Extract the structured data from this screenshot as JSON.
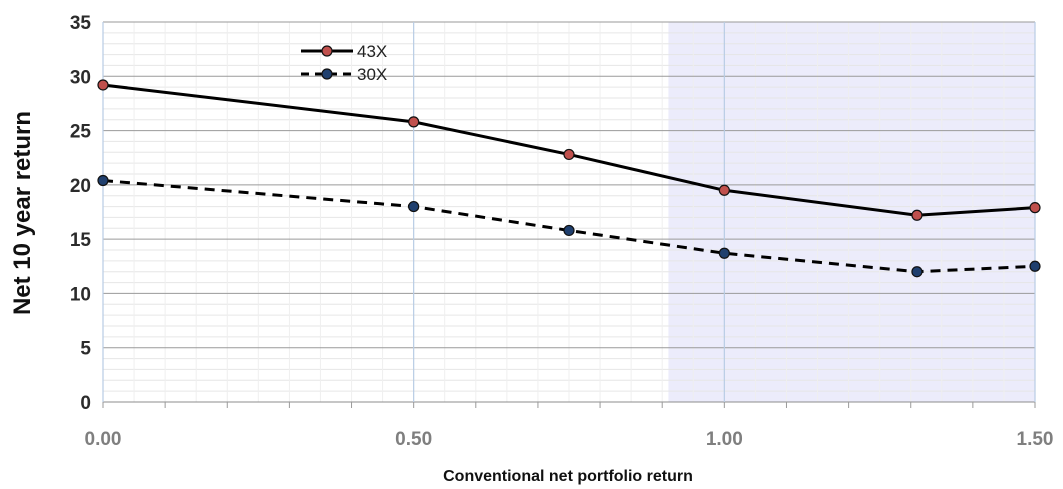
{
  "chart_data": {
    "type": "line",
    "title": "",
    "xlabel": "Conventional net portfolio return",
    "ylabel": "Net 10 year return",
    "xlim": [
      0,
      1.5
    ],
    "ylim": [
      0,
      35
    ],
    "x_ticks": [
      "0.00",
      "0.50",
      "1.00",
      "1.50"
    ],
    "y_ticks": [
      "0",
      "5",
      "10",
      "15",
      "20",
      "25",
      "30",
      "35"
    ],
    "shaded_region": {
      "x_from": 0.91,
      "x_to": 1.5,
      "color": "#ececfb"
    },
    "grid": true,
    "legend_position": "top-left",
    "series": [
      {
        "name": "43X",
        "line_style": "solid",
        "line_color": "#000000",
        "marker_fill": "#c0504d",
        "x": [
          0.0,
          0.5,
          0.75,
          1.0,
          1.31,
          1.5
        ],
        "values": [
          29.2,
          25.8,
          22.8,
          19.5,
          17.2,
          17.9
        ]
      },
      {
        "name": "30X",
        "line_style": "dashed",
        "line_color": "#000000",
        "marker_fill": "#1f3f6e",
        "x": [
          0.0,
          0.5,
          0.75,
          1.0,
          1.31,
          1.5
        ],
        "values": [
          20.4,
          18.0,
          15.8,
          13.7,
          12.0,
          12.5
        ]
      }
    ]
  }
}
